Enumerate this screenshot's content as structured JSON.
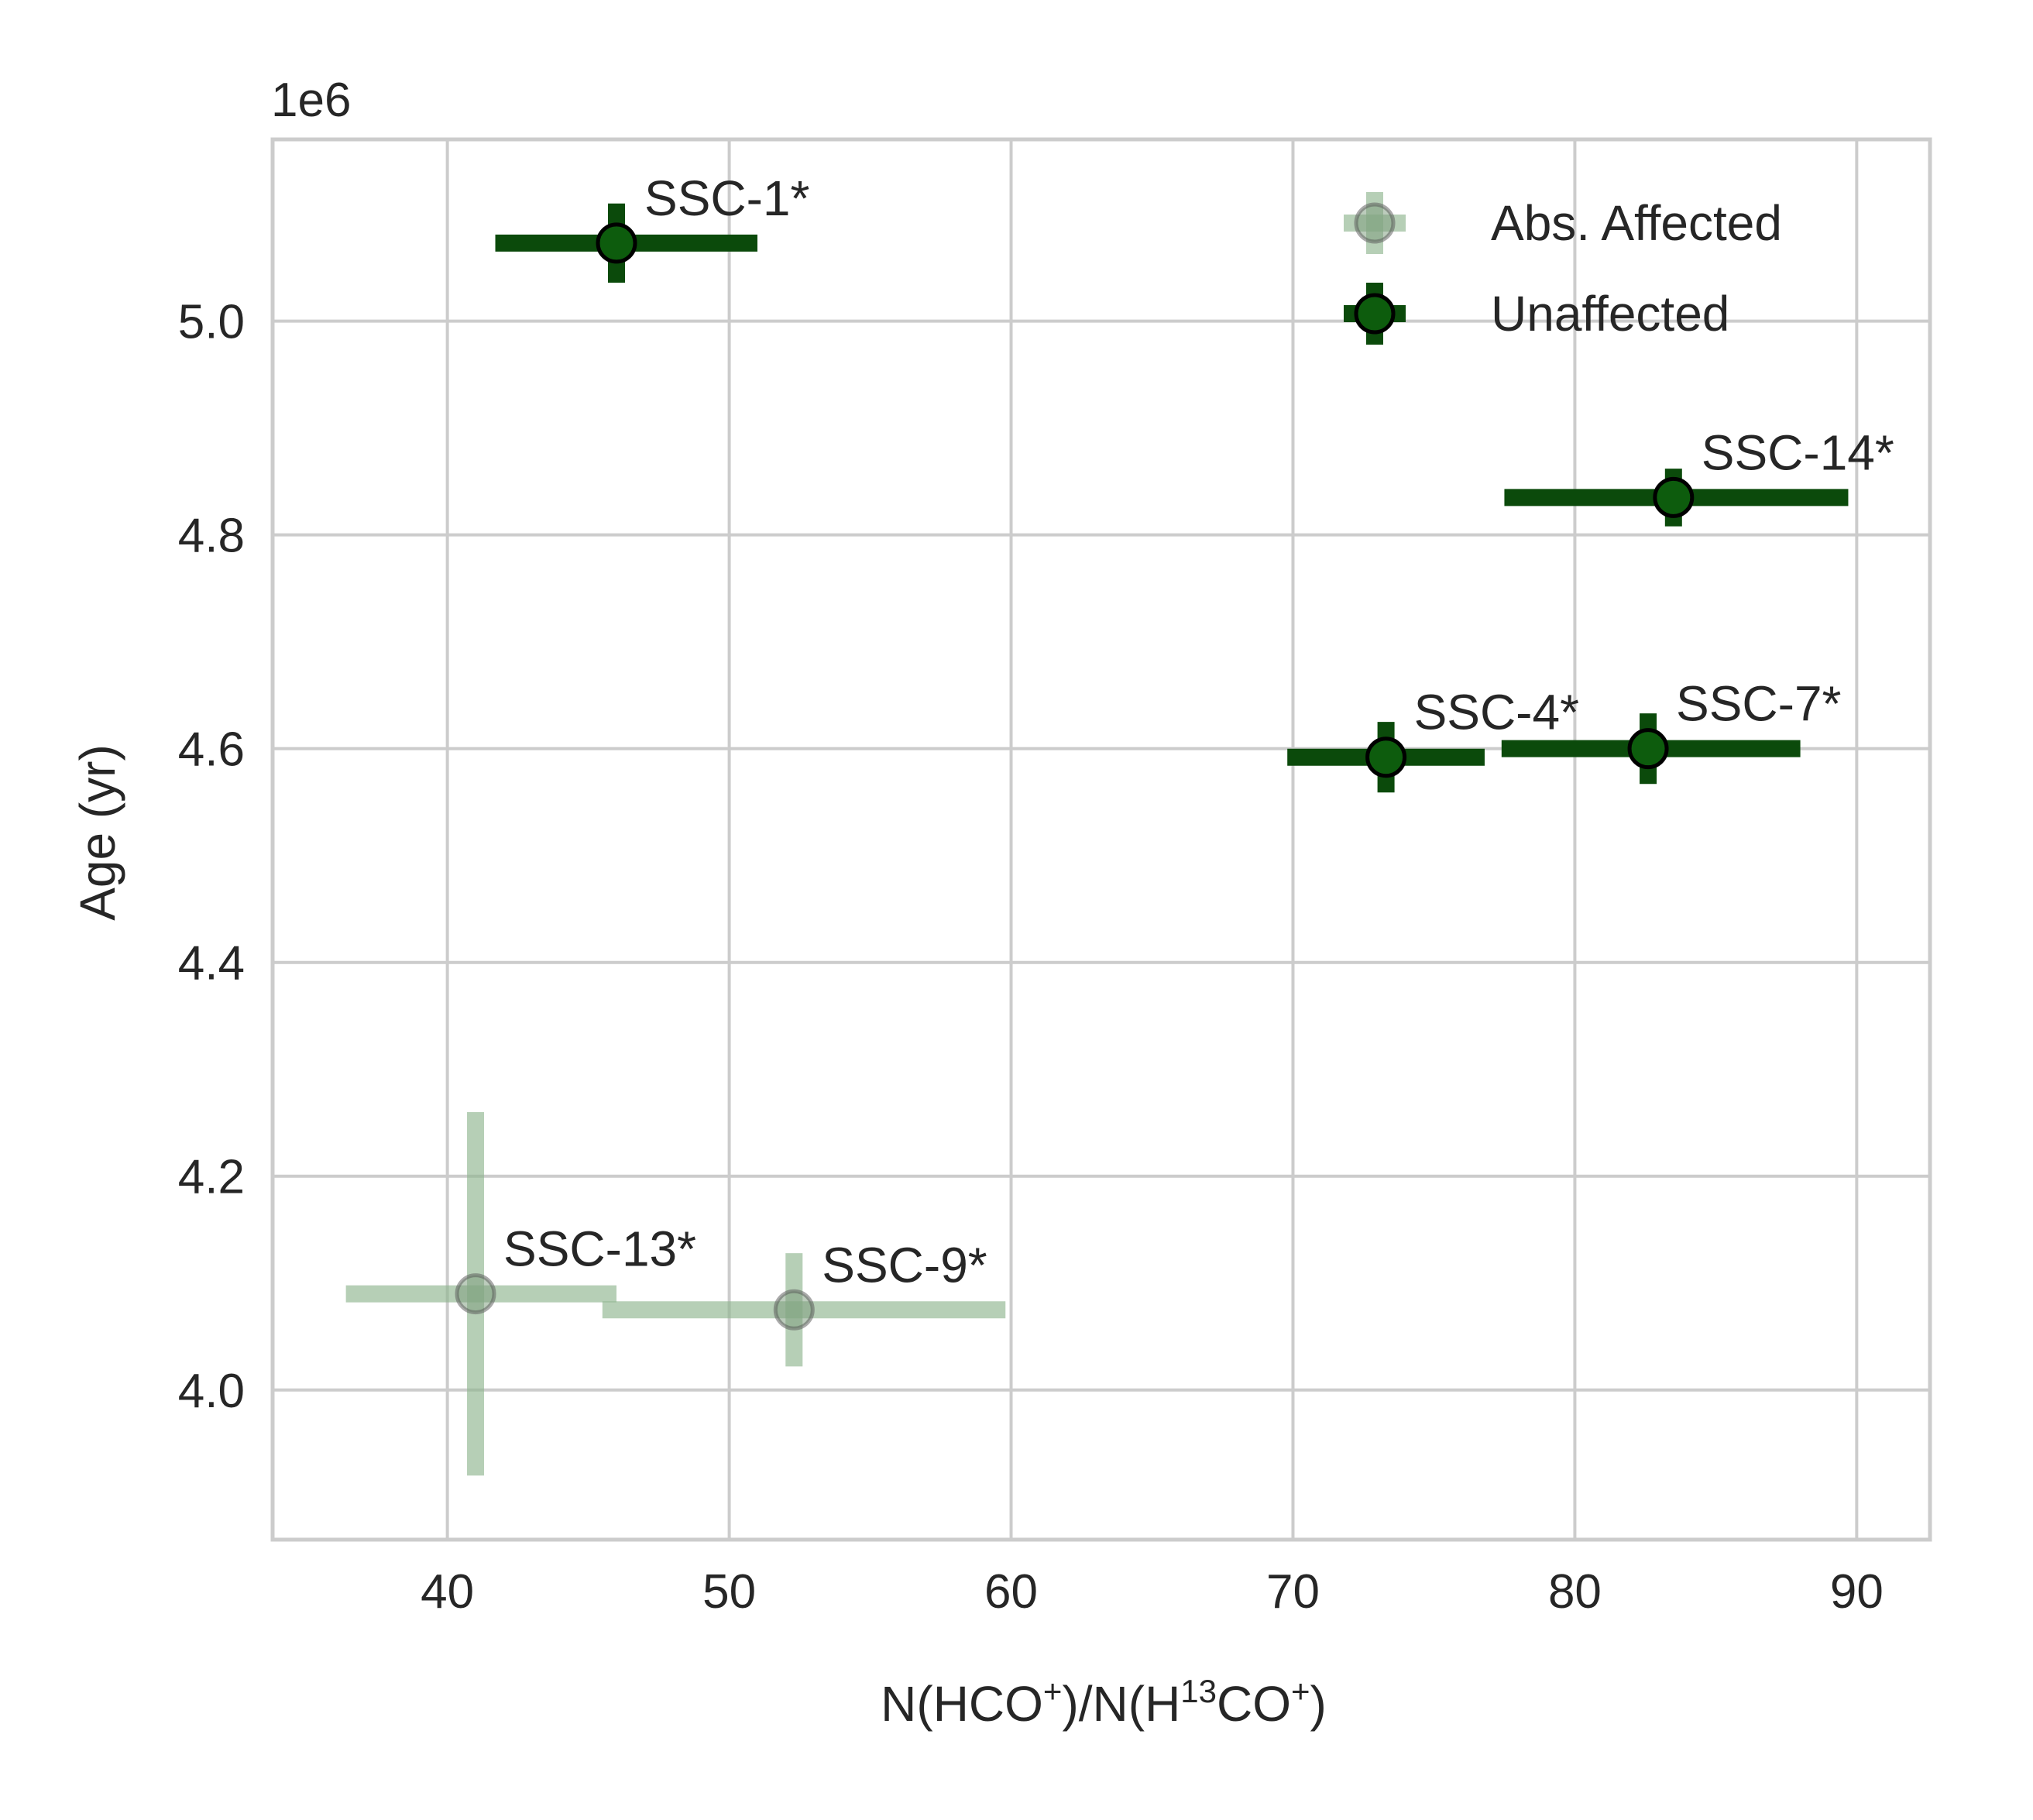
{
  "chart_data": {
    "type": "scatter",
    "title": "",
    "xlabel": {
      "pre": "N(HCO",
      "sup1": "+",
      "mid": ")/N(H",
      "sup2": "13",
      "mid2": "CO",
      "sup3": "+",
      "post": ")"
    },
    "ylabel": "Age (yr)",
    "y_offset_text": "1e6",
    "xlim": [
      33.8,
      92.6
    ],
    "ylim": [
      3.86,
      5.17
    ],
    "xticks": [
      40,
      50,
      60,
      70,
      80,
      90
    ],
    "yticks": [
      4.0,
      4.2,
      4.4,
      4.6,
      4.8,
      5.0
    ],
    "ytick_labels": [
      "4.0",
      "4.2",
      "4.4",
      "4.6",
      "4.8",
      "5.0"
    ],
    "grid": true,
    "legend_position": "top-right",
    "colors": {
      "unaffected": "#0b4a0b",
      "marker_fill": "#0d5c0d",
      "affected": "#8fb58f",
      "grid": "#cccccc",
      "text": "#262626"
    },
    "series": [
      {
        "name": "Abs. Affected",
        "style": "affected",
        "points": [
          {
            "label": "SSC-13*",
            "x": 41.0,
            "xerr": [
              4.6,
              5.0
            ],
            "y": 4.09,
            "yerr": [
              0.17,
              0.17
            ]
          },
          {
            "label": "SSC-9*",
            "x": 52.3,
            "xerr": [
              6.8,
              7.5
            ],
            "y": 4.075,
            "yerr": [
              0.053,
              0.053
            ]
          }
        ]
      },
      {
        "name": "Unaffected",
        "style": "unaffected",
        "points": [
          {
            "label": "SSC-1*",
            "x": 46.0,
            "xerr": [
              4.3,
              5.0
            ],
            "y": 5.073,
            "yerr": [
              0.037,
              0.037
            ]
          },
          {
            "label": "SSC-14*",
            "x": 83.5,
            "xerr": [
              6.0,
              6.2
            ],
            "y": 4.835,
            "yerr": [
              0.027,
              0.027
            ]
          },
          {
            "label": "SSC-4*",
            "x": 73.3,
            "xerr": [
              3.5,
              3.5
            ],
            "y": 4.592,
            "yerr": [
              0.033,
              0.033
            ]
          },
          {
            "label": "SSC-7*",
            "x": 82.6,
            "xerr": [
              5.2,
              5.4
            ],
            "y": 4.6,
            "yerr": [
              0.033,
              0.033
            ]
          }
        ]
      }
    ]
  }
}
